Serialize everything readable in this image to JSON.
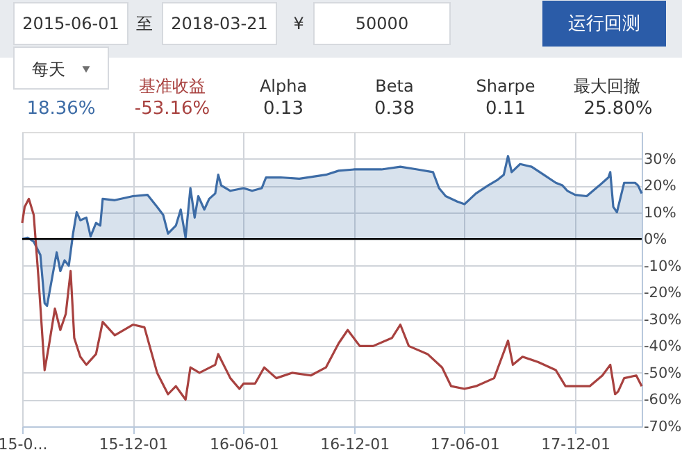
{
  "chart_data": {
    "type": "line",
    "annotations": [
      "2015-06-01",
      "至",
      "2018-03-21",
      "¥",
      "50000",
      "运行回测",
      "每天",
      "18.36%",
      "-53.16%",
      "Alpha",
      "0.13",
      "Beta",
      "0.38",
      "Sharpe",
      "0.11",
      "最大回撤",
      "25.80%"
    ],
    "series": [
      {
        "type": "area",
        "color": "#3d6ca6",
        "x": [
          "2015-06-01",
          "2015-06-10",
          "2015-06-20",
          "2015-07-01",
          "2015-07-08",
          "2015-07-12",
          "2015-07-20",
          "2015-07-28",
          "2015-08-03",
          "2015-08-10",
          "2015-08-17",
          "2015-08-24",
          "2015-08-30",
          "2015-09-05",
          "2015-09-15",
          "2015-09-22",
          "2015-10-01",
          "2015-10-08",
          "2015-10-12",
          "2015-11-01",
          "2015-12-01",
          "2015-12-25",
          "2016-01-10",
          "2016-01-20",
          "2016-01-28",
          "2016-02-10",
          "2016-02-18",
          "2016-02-26",
          "2016-03-05",
          "2016-03-12",
          "2016-03-18",
          "2016-03-28",
          "2016-04-05",
          "2016-04-15",
          "2016-04-20",
          "2016-04-25",
          "2016-05-10",
          "2016-06-01",
          "2016-06-15",
          "2016-07-01",
          "2016-07-08",
          "2016-08-01",
          "2016-09-01",
          "2016-10-15",
          "2016-11-05",
          "2016-12-01",
          "2017-01-15",
          "2017-02-15",
          "2017-03-15",
          "2017-04-10",
          "2017-04-20",
          "2017-05-01",
          "2017-05-20",
          "2017-06-01",
          "2017-06-20",
          "2017-07-10",
          "2017-07-25",
          "2017-08-05",
          "2017-08-12",
          "2017-08-18",
          "2017-09-01",
          "2017-09-20",
          "2017-10-10",
          "2017-10-30",
          "2017-11-10",
          "2017-11-18",
          "2017-12-01",
          "2017-12-20",
          "2018-01-10",
          "2018-01-25",
          "2018-01-28",
          "2018-02-02",
          "2018-02-08",
          "2018-02-20",
          "2018-03-10",
          "2018-03-15",
          "2018-03-21"
        ],
        "values": [
          0,
          0.5,
          -1,
          -6,
          -24,
          -25,
          -15,
          -5,
          -12,
          -8,
          -10,
          2,
          10,
          7,
          8,
          1,
          6,
          5,
          15,
          14.5,
          16,
          16.5,
          12,
          9,
          2,
          5,
          11,
          0.5,
          19,
          8,
          16,
          11,
          15,
          17,
          24,
          20,
          18,
          19,
          18,
          19,
          23,
          23,
          22.5,
          24,
          25.5,
          26,
          26,
          27,
          26,
          25,
          19,
          16,
          14,
          13,
          17,
          20,
          22,
          24,
          31,
          25,
          28,
          27,
          24,
          21,
          20,
          18,
          16.5,
          16,
          20,
          23,
          25,
          12,
          10,
          21,
          21,
          20,
          17
        ]
      },
      {
        "type": "line",
        "name": "基准收益",
        "color": "#a8413f",
        "x": [
          "2015-06-01",
          "2015-06-05",
          "2015-06-12",
          "2015-06-20",
          "2015-06-28",
          "2015-07-08",
          "2015-07-15",
          "2015-07-25",
          "2015-08-03",
          "2015-08-12",
          "2015-08-20",
          "2015-08-26",
          "2015-09-05",
          "2015-09-15",
          "2015-10-01",
          "2015-10-12",
          "2015-11-01",
          "2015-12-01",
          "2015-12-20",
          "2016-01-10",
          "2016-01-28",
          "2016-02-10",
          "2016-02-26",
          "2016-03-05",
          "2016-03-20",
          "2016-04-15",
          "2016-04-20",
          "2016-05-10",
          "2016-05-25",
          "2016-06-01",
          "2016-06-20",
          "2016-07-05",
          "2016-07-25",
          "2016-08-20",
          "2016-09-20",
          "2016-10-15",
          "2016-11-05",
          "2016-11-20",
          "2016-12-10",
          "2017-01-01",
          "2017-02-01",
          "2017-02-15",
          "2017-03-01",
          "2017-04-01",
          "2017-04-25",
          "2017-05-10",
          "2017-06-01",
          "2017-06-20",
          "2017-07-20",
          "2017-08-12",
          "2017-08-20",
          "2017-09-05",
          "2017-10-01",
          "2017-10-30",
          "2017-11-15",
          "2017-12-01",
          "2017-12-25",
          "2018-01-15",
          "2018-01-28",
          "2018-02-05",
          "2018-02-10",
          "2018-02-20",
          "2018-03-12",
          "2018-03-21"
        ],
        "values": [
          6,
          12,
          15,
          9,
          -15,
          -49,
          -40,
          -26,
          -34,
          -28,
          -12,
          -37,
          -44,
          -47,
          -43,
          -31,
          -36,
          -32,
          -33,
          -50,
          -58,
          -55,
          -60,
          -48,
          -50,
          -47,
          -43,
          -52,
          -56,
          -54,
          -54,
          -48,
          -52,
          -50,
          -51,
          -48,
          -39,
          -34,
          -40,
          -40,
          -37,
          -32,
          -40,
          -43,
          -48,
          -55,
          -56,
          -55,
          -52,
          -38,
          -47,
          -44,
          -46,
          -49,
          -55,
          -55,
          -55,
          -51,
          -47,
          -58,
          -57,
          -52,
          -51,
          -55
        ]
      }
    ],
    "xlim": [
      "2015-06-01",
      "2018-03-21"
    ],
    "xticks": [
      {
        "value": "2015-06-01",
        "label": "15-0..."
      },
      {
        "value": "2015-12-01",
        "label": "15-12-01"
      },
      {
        "value": "2016-06-01",
        "label": "16-06-01"
      },
      {
        "value": "2016-12-01",
        "label": "16-12-01"
      },
      {
        "value": "2017-06-01",
        "label": "17-06-01"
      },
      {
        "value": "2017-12-01",
        "label": "17-12-01"
      }
    ],
    "ylim": [
      -70,
      40
    ],
    "yticks": [
      {
        "value": -70,
        "label": "-70%"
      },
      {
        "value": -60,
        "label": "-60%"
      },
      {
        "value": -50,
        "label": "-50%"
      },
      {
        "value": -40,
        "label": "-40%"
      },
      {
        "value": -30,
        "label": "-30%"
      },
      {
        "value": -20,
        "label": "-20%"
      },
      {
        "value": -10,
        "label": "-10%"
      },
      {
        "value": 0,
        "label": "0%"
      },
      {
        "value": 10,
        "label": "10%"
      },
      {
        "value": 20,
        "label": "20%"
      },
      {
        "value": 30,
        "label": "30%"
      }
    ],
    "ref_lines": [
      {
        "axis": "y",
        "value": 0,
        "color": "#000000"
      }
    ],
    "grid": true
  }
}
